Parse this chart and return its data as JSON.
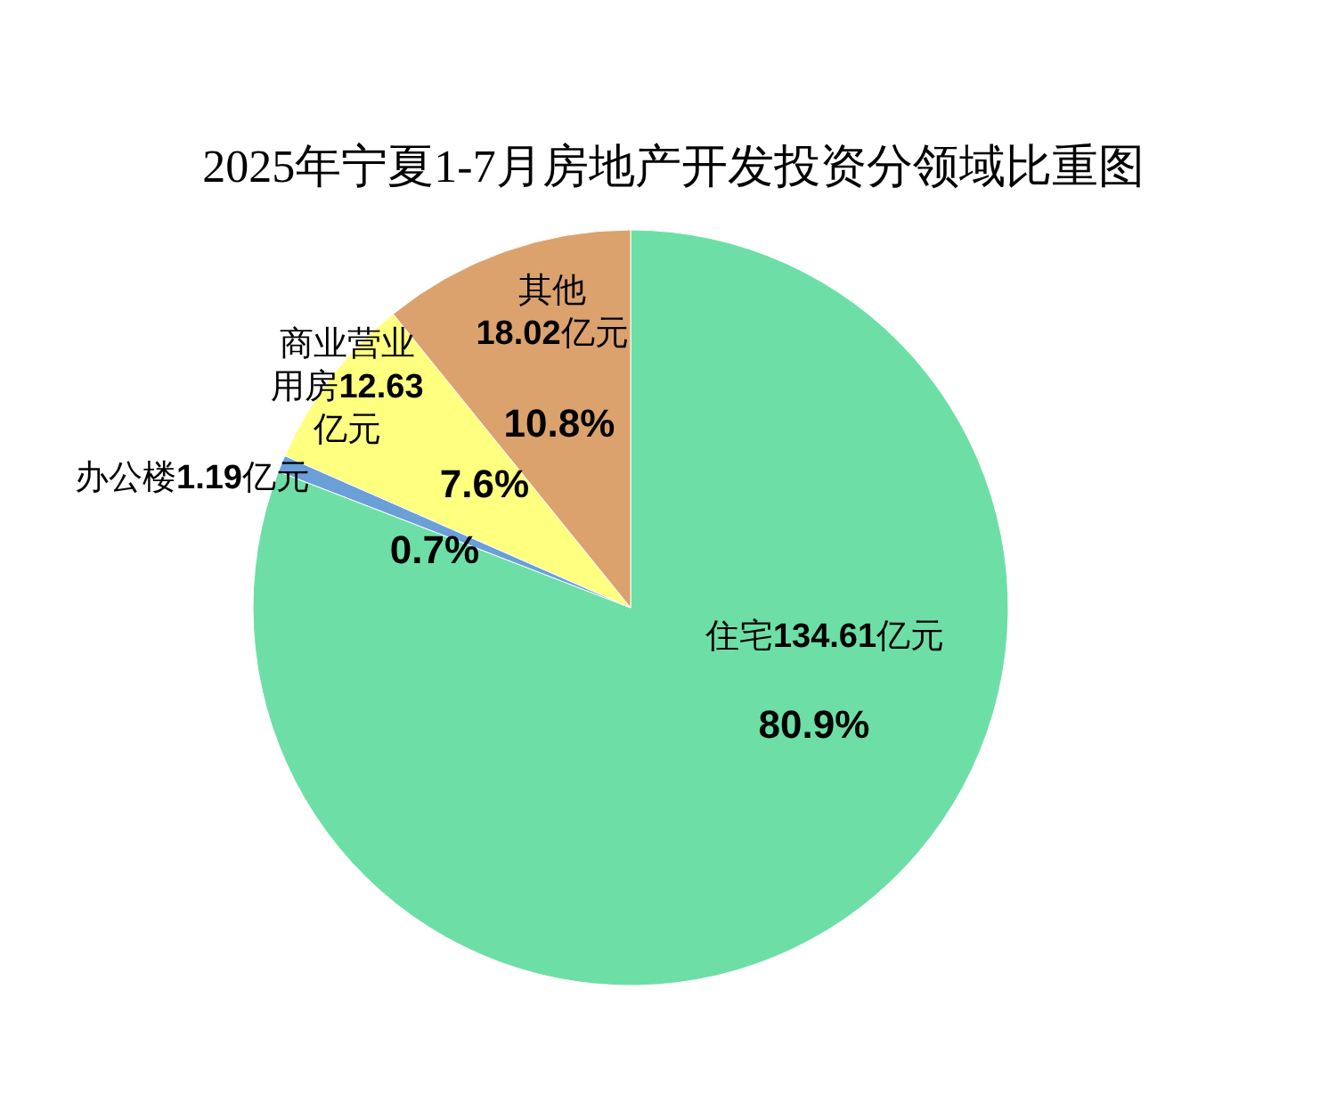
{
  "chart_data": {
    "type": "pie",
    "title": "2025年宁夏1-7月房地产开发投资分领域比重图",
    "categories": [
      "住宅",
      "办公楼",
      "商业营业用房",
      "其他"
    ],
    "values": [
      134.61,
      1.19,
      12.63,
      18.02
    ],
    "colors": [
      "#6ddfa6",
      "#6a9fd8",
      "#ffff80",
      "#dba26e"
    ],
    "value_labels": [
      "134.61亿元",
      "1.19亿元",
      "12.63亿元",
      "18.02亿元"
    ],
    "annotations": [
      "80.9%",
      "0.7%",
      "7.6%",
      "10.8%"
    ]
  }
}
